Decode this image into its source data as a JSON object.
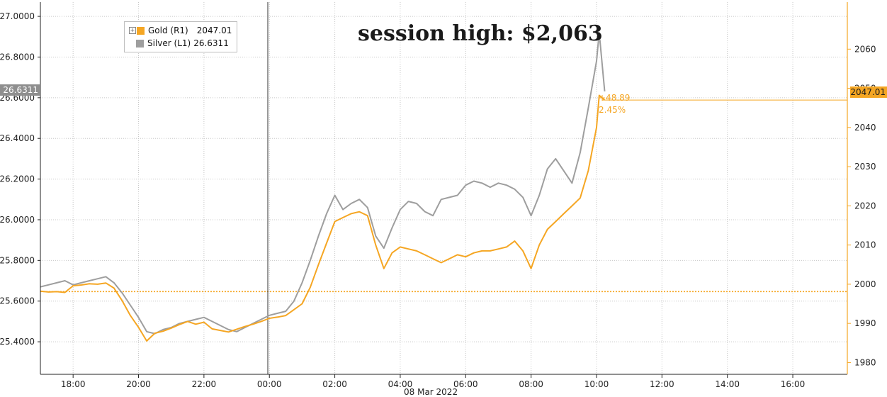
{
  "annotation": "session high: $2,063",
  "legend": {
    "gold_label": "Gold (R1)",
    "gold_value": "2047.01",
    "silver_label": "Silver (L1)",
    "silver_value": "26.6311"
  },
  "last_value_tags": {
    "silver": "26.6311",
    "gold": "2047.01"
  },
  "change": {
    "abs": "+48.89",
    "pct": "2.45%"
  },
  "date_label": "08 Mar 2022",
  "colors": {
    "gold": "#f5a623",
    "silver": "#9e9e9e",
    "grid": "#c8c8c8",
    "axis": "#222222"
  },
  "chart_data": {
    "type": "line",
    "title": "",
    "x": [
      "17:00",
      "17:15",
      "17:30",
      "17:45",
      "18:00",
      "18:15",
      "18:30",
      "18:45",
      "19:00",
      "19:15",
      "19:30",
      "19:45",
      "20:00",
      "20:15",
      "20:30",
      "20:45",
      "21:00",
      "21:15",
      "21:30",
      "21:45",
      "22:00",
      "22:15",
      "22:30",
      "22:45",
      "23:00",
      "23:15",
      "23:30",
      "23:45",
      "00:00",
      "00:15",
      "00:30",
      "00:45",
      "01:00",
      "01:15",
      "01:30",
      "01:45",
      "02:00",
      "02:15",
      "02:30",
      "02:45",
      "03:00",
      "03:15",
      "03:30",
      "03:45",
      "04:00",
      "04:15",
      "04:30",
      "04:45",
      "05:00",
      "05:15",
      "05:30",
      "05:45",
      "06:00",
      "06:15",
      "06:30",
      "06:45",
      "07:00",
      "07:15",
      "07:30",
      "07:45",
      "08:00",
      "08:15",
      "08:30",
      "08:45",
      "09:00",
      "09:15",
      "09:30",
      "09:45",
      "10:00",
      "10:05",
      "10:15"
    ],
    "x_ticks": [
      "18:00",
      "20:00",
      "22:00",
      "00:00",
      "02:00",
      "04:00",
      "06:00",
      "08:00",
      "10:00",
      "12:00",
      "14:00",
      "16:00"
    ],
    "x_range": [
      "17:00",
      "17:40 (next day)"
    ],
    "series": [
      {
        "name": "Gold (R1)",
        "axis": "right",
        "values": [
          1998.2,
          1998.0,
          1998.1,
          1997.9,
          1999.6,
          1999.8,
          2000.1,
          2000.0,
          2000.3,
          1999.0,
          1995.8,
          1992.0,
          1989.0,
          1985.5,
          1987.5,
          1988.0,
          1988.8,
          1989.7,
          1990.5,
          1989.8,
          1990.3,
          1988.6,
          1988.2,
          1987.8,
          1988.5,
          1989.2,
          1989.8,
          1990.5,
          1991.3,
          1991.6,
          1992.0,
          1993.5,
          1995.0,
          1999.2,
          2005.0,
          2010.5,
          2016.0,
          2017.0,
          2018.0,
          2018.5,
          2017.5,
          2010.0,
          2004.0,
          2008.0,
          2009.5,
          2009.0,
          2008.5,
          2007.5,
          2006.5,
          2005.5,
          2006.5,
          2007.5,
          2007.0,
          2008.0,
          2008.5,
          2008.5,
          2009.0,
          2009.5,
          2011.0,
          2008.5,
          2004.0,
          2010.0,
          2014.0,
          2016.0,
          2018.0,
          2020.0,
          2022.0,
          2029.0,
          2040.0,
          2048.2,
          2047.01
        ],
        "last": 2047.01,
        "session_high": 2063
      },
      {
        "name": "Silver (L1)",
        "axis": "left",
        "values": [
          25.67,
          25.68,
          25.69,
          25.7,
          25.68,
          25.69,
          25.7,
          25.71,
          25.72,
          25.69,
          25.64,
          25.58,
          25.52,
          25.45,
          25.44,
          25.46,
          25.47,
          25.49,
          25.5,
          25.51,
          25.52,
          25.5,
          25.48,
          25.46,
          25.45,
          25.47,
          25.49,
          25.51,
          25.53,
          25.54,
          25.55,
          25.6,
          25.69,
          25.8,
          25.92,
          26.03,
          26.12,
          26.05,
          26.08,
          26.1,
          26.06,
          25.92,
          25.86,
          25.96,
          26.05,
          26.09,
          26.08,
          26.04,
          26.02,
          26.1,
          26.11,
          26.12,
          26.17,
          26.19,
          26.18,
          26.16,
          26.18,
          26.17,
          26.15,
          26.11,
          26.02,
          26.12,
          26.25,
          26.3,
          26.24,
          26.18,
          26.33,
          26.55,
          26.78,
          26.92,
          26.6311
        ],
        "last": 26.6311
      }
    ],
    "left_axis": {
      "label": "",
      "ticks": [
        25.4,
        25.6,
        25.8,
        26.0,
        26.2,
        26.4,
        26.6,
        26.8,
        27.0
      ],
      "tick_labels": [
        "25.4000",
        "25.6000",
        "25.8000",
        "26.0000",
        "26.2000",
        "26.4000",
        "26.6000",
        "26.8000",
        "27.0000"
      ],
      "range": [
        25.24,
        27.07
      ]
    },
    "right_axis": {
      "label": "",
      "ticks": [
        1980,
        1990,
        2000,
        2010,
        2020,
        2030,
        2040,
        2050,
        2060
      ],
      "range": [
        1977,
        2072
      ]
    },
    "reference_lines": [
      {
        "series": "Gold (R1)",
        "axis": "right",
        "value": 1998.12,
        "style": "dotted"
      },
      {
        "series": "Gold (R1)",
        "axis": "right",
        "value": 2047.01,
        "style": "solid"
      }
    ],
    "grid": true,
    "legend_position": "top-left"
  }
}
